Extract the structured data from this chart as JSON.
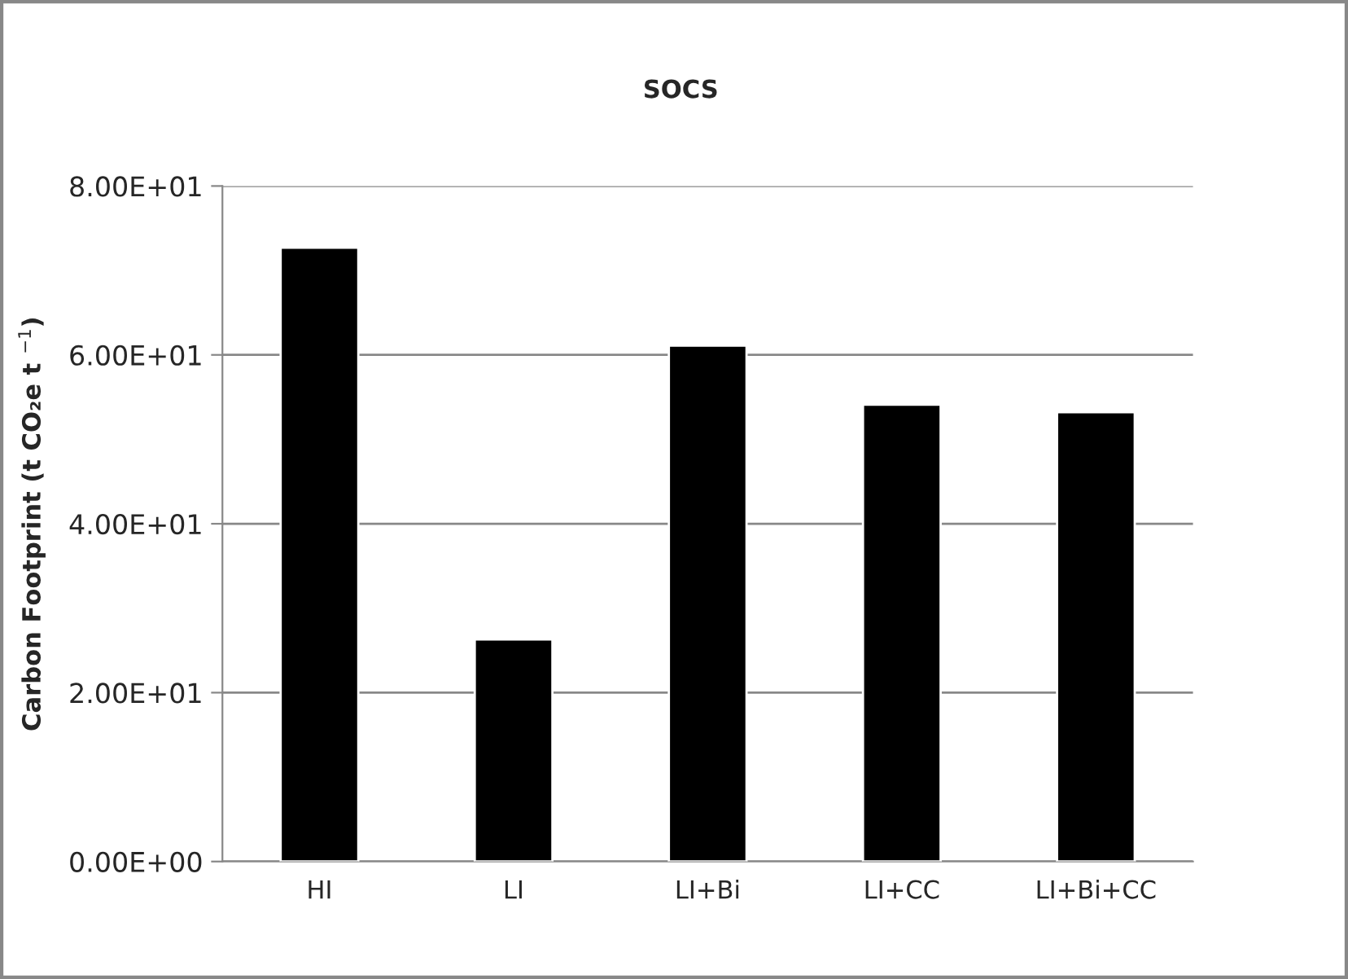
{
  "chart_data": {
    "type": "bar",
    "title": "SOCS",
    "ylabel": "Carbon Footprint (t CO₂e t $^{−1}$)",
    "categories": [
      "HI",
      "LI",
      "LI+Bi",
      "LI+CC",
      "LI+Bi+CC"
    ],
    "values": [
      72.7,
      26.3,
      61.1,
      54.1,
      53.2
    ],
    "color": "#000000",
    "ylim": [
      0,
      80
    ],
    "yticks": [
      {
        "value": 0,
        "label": "0.00E+00"
      },
      {
        "value": 20,
        "label": "2.00E+01"
      },
      {
        "value": 40,
        "label": "4.00E+01"
      },
      {
        "value": 60,
        "label": "6.00E+01"
      },
      {
        "value": 80,
        "label": "8.00E+01"
      }
    ],
    "grid": "y",
    "legend": false
  }
}
